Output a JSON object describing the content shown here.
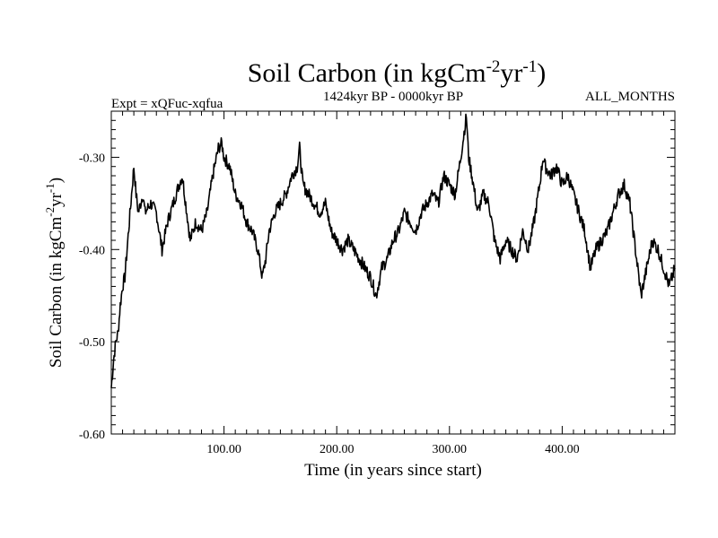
{
  "chart_data": {
    "type": "line",
    "title": {
      "main": "Soil Carbon (in kgCm",
      "sup1": "-2",
      "mid": "yr",
      "sup2": "-1",
      "end": ")"
    },
    "subtitle_left": "Expt = xQFuc-xqfua",
    "subtitle_center": "1424kyr BP - 0000kyr BP",
    "subtitle_right": "ALL_MONTHS",
    "xlabel": "Time (in years since start)",
    "ylabel": {
      "main": "Soil Carbon (in kgCm",
      "sup1": "-2",
      "mid": "yr",
      "sup2": "-1",
      "end": ")"
    },
    "xlim": [
      0,
      500
    ],
    "ylim": [
      -0.6,
      -0.25
    ],
    "x_ticks": [
      100,
      200,
      300,
      400
    ],
    "x_tick_labels": [
      "100.00",
      "200.00",
      "300.00",
      "400.00"
    ],
    "y_ticks": [
      -0.3,
      -0.4,
      -0.5,
      -0.6
    ],
    "y_tick_labels": [
      "-0.30",
      "-0.40",
      "-0.50",
      "-0.60"
    ],
    "series": [
      {
        "name": "Soil Carbon",
        "color": "#000000",
        "x": [
          0,
          2,
          4,
          6,
          8,
          10,
          12,
          14,
          16,
          18,
          20,
          22,
          24,
          26,
          28,
          30,
          35,
          40,
          45,
          50,
          55,
          60,
          63,
          65,
          70,
          75,
          80,
          85,
          90,
          95,
          98,
          100,
          105,
          110,
          115,
          120,
          125,
          130,
          134,
          137,
          140,
          145,
          150,
          155,
          160,
          165,
          167,
          170,
          175,
          180,
          185,
          190,
          195,
          200,
          205,
          210,
          215,
          220,
          225,
          230,
          235,
          240,
          245,
          250,
          255,
          260,
          265,
          270,
          275,
          280,
          285,
          290,
          295,
          300,
          305,
          310,
          315,
          317,
          320,
          325,
          330,
          335,
          340,
          345,
          350,
          355,
          360,
          365,
          370,
          375,
          380,
          383,
          385,
          390,
          395,
          400,
          405,
          410,
          415,
          420,
          425,
          430,
          435,
          440,
          445,
          450,
          455,
          460,
          465,
          470,
          475,
          480,
          485,
          490,
          495,
          500
        ],
        "values": [
          -0.55,
          -0.52,
          -0.5,
          -0.49,
          -0.46,
          -0.44,
          -0.43,
          -0.4,
          -0.37,
          -0.34,
          -0.31,
          -0.34,
          -0.36,
          -0.35,
          -0.34,
          -0.36,
          -0.35,
          -0.36,
          -0.4,
          -0.37,
          -0.35,
          -0.33,
          -0.32,
          -0.34,
          -0.39,
          -0.37,
          -0.38,
          -0.36,
          -0.32,
          -0.29,
          -0.285,
          -0.3,
          -0.31,
          -0.34,
          -0.35,
          -0.37,
          -0.38,
          -0.4,
          -0.43,
          -0.41,
          -0.38,
          -0.36,
          -0.35,
          -0.34,
          -0.32,
          -0.31,
          -0.29,
          -0.33,
          -0.34,
          -0.35,
          -0.36,
          -0.35,
          -0.38,
          -0.39,
          -0.4,
          -0.39,
          -0.4,
          -0.41,
          -0.42,
          -0.43,
          -0.45,
          -0.42,
          -0.41,
          -0.39,
          -0.38,
          -0.36,
          -0.37,
          -0.38,
          -0.36,
          -0.35,
          -0.34,
          -0.35,
          -0.32,
          -0.33,
          -0.34,
          -0.3,
          -0.255,
          -0.3,
          -0.32,
          -0.36,
          -0.34,
          -0.35,
          -0.39,
          -0.41,
          -0.39,
          -0.4,
          -0.41,
          -0.38,
          -0.4,
          -0.37,
          -0.33,
          -0.3,
          -0.31,
          -0.32,
          -0.31,
          -0.33,
          -0.32,
          -0.34,
          -0.36,
          -0.38,
          -0.42,
          -0.4,
          -0.39,
          -0.38,
          -0.36,
          -0.34,
          -0.33,
          -0.35,
          -0.4,
          -0.45,
          -0.42,
          -0.39,
          -0.4,
          -0.42,
          -0.44,
          -0.42
        ]
      }
    ],
    "grid": false
  }
}
